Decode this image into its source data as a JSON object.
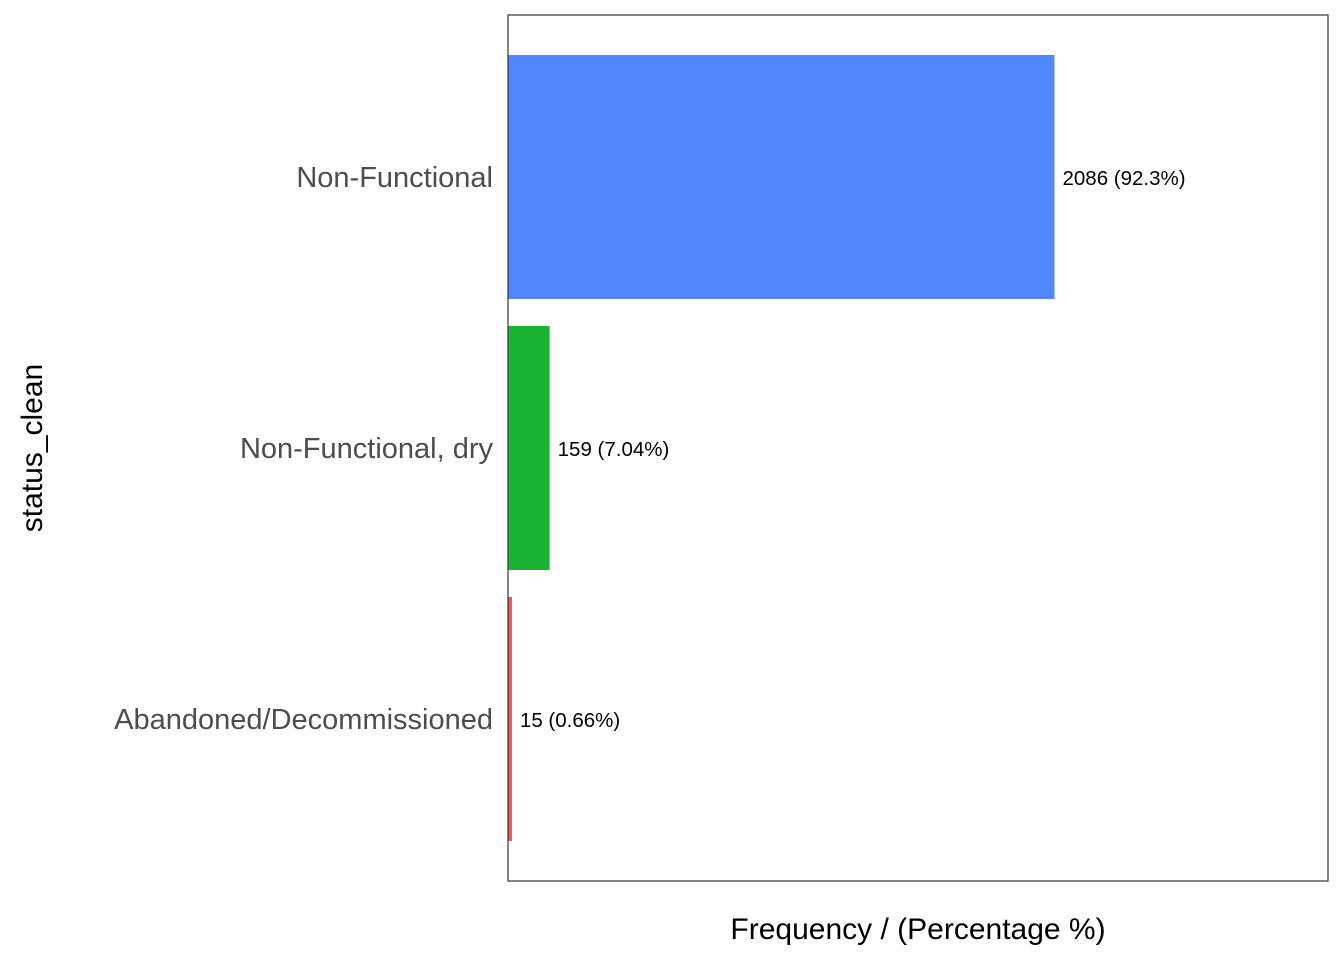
{
  "chart_data": {
    "type": "bar",
    "orientation": "horizontal",
    "title": "",
    "xlabel": "Frequency / (Percentage %)",
    "ylabel": "status_clean",
    "categories": [
      "Non-Functional",
      "Non-Functional, dry",
      "Abandoned/Decommissioned"
    ],
    "values": [
      2086,
      159,
      15
    ],
    "percentages": [
      "92.3%",
      "7.04%",
      "0.66%"
    ],
    "data_labels": [
      "2086 (92.3%)",
      "159 (7.04%)",
      "15 (0.66%)"
    ],
    "colors": [
      "#5087FF",
      "#19B332",
      "#E8595B"
    ],
    "xlim": [
      0,
      3130
    ],
    "x_ticks_shown": false,
    "grid": false,
    "legend": "none"
  }
}
